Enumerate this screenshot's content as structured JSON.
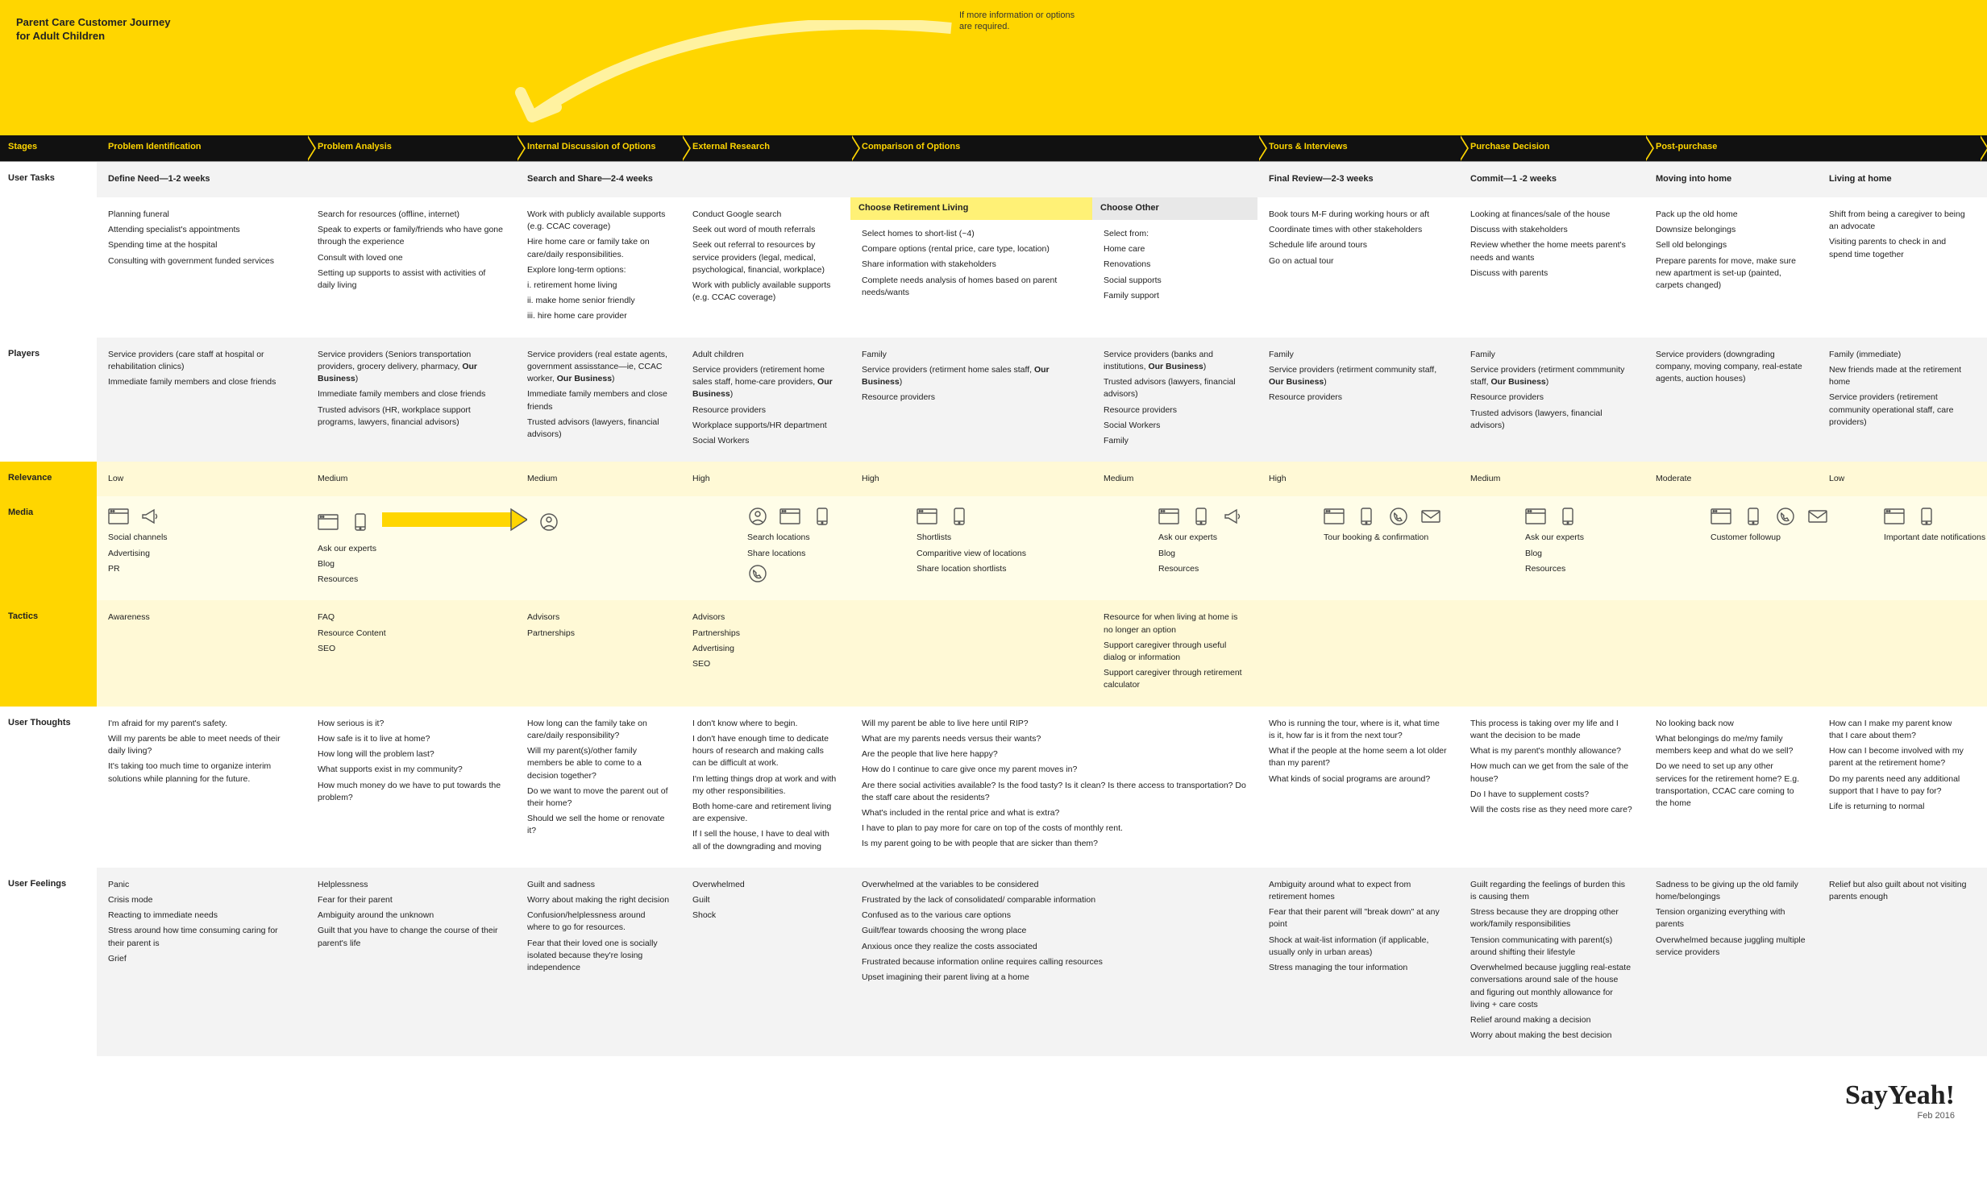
{
  "meta": {
    "title_line1": "Parent Care Customer Journey",
    "title_line2": "for Adult Children",
    "feedback_note_line1": "If more information or options",
    "feedback_note_line2": "are required.",
    "brand": "SayYeah!",
    "date": "Feb 2016",
    "colors": {
      "brand_yellow": "#ffd600",
      "lt_yellow": "#fff9d6",
      "pale_yellow": "#fffde8",
      "dark": "#111111",
      "grey_bg": "#f3f3f3",
      "highlight": "#fff176"
    }
  },
  "row_labels": {
    "stages": "Stages",
    "user_tasks": "User Tasks",
    "players": "Players",
    "relevance": "Relevance",
    "media": "Media",
    "tactics": "Tactics",
    "user_thoughts": "User Thoughts",
    "user_feelings": "User Feelings"
  },
  "stages": [
    {
      "id": "s0",
      "label": "Problem Identification"
    },
    {
      "id": "s1",
      "label": "Problem Analysis"
    },
    {
      "id": "s2",
      "label": "Internal Discussion of Options"
    },
    {
      "id": "s3",
      "label": "External Research"
    },
    {
      "id": "s4",
      "label": "Comparison of Options"
    },
    {
      "id": "s5",
      "label": "Tours & Interviews"
    },
    {
      "id": "s6",
      "label": "Purchase Decision"
    },
    {
      "id": "s7",
      "label": "Post-purchase"
    }
  ],
  "phases": {
    "p0": "Define Need—1-2 weeks",
    "p1": "Search and Share—2-4 weeks",
    "p2": "Final Review—2-3 weeks",
    "p3": "Commit—1 -2 weeks",
    "p4": "Moving into home",
    "p5": "Living at home"
  },
  "subheads": {
    "retirement": "Choose Retirement Living",
    "other": "Choose Other"
  },
  "tasks": {
    "c0": [
      "Planning funeral",
      "Attending specialist's appointments",
      "Spending time at the hospital",
      "Consulting with government funded services"
    ],
    "c1": [
      "Search for resources (offline, internet)",
      "Speak to experts or family/friends who have gone through the experience",
      "Consult with loved one",
      "Setting up supports to assist with activities of daily living"
    ],
    "c2": [
      "Work with publicly available supports (e.g. CCAC coverage)",
      "Hire home care or family take on care/daily responsibilities.",
      "Explore long-term options:",
      "i. retirement home living",
      "ii. make home senior friendly",
      "iii. hire home care provider"
    ],
    "c3": [
      "Conduct Google search",
      "Seek out word of mouth referrals",
      "Seek out referral to resources by service providers (legal, medical, psychological, financial, workplace)",
      "Work with publicly available supports (e.g. CCAC coverage)"
    ],
    "c4": [
      "Select homes to short-list (~4)",
      "Compare options (rental price, care type, location)",
      "Share information with stakeholders",
      "Complete needs analysis of homes based on parent needs/wants"
    ],
    "c5": [
      "Select from:",
      "Home care",
      "Renovations",
      "Social supports",
      "Family support"
    ],
    "c6": [
      "Book tours M-F during working hours or aft",
      "Coordinate times with other stakeholders",
      "Schedule life around tours",
      "Go on actual tour"
    ],
    "c7": [
      "Looking at finances/sale of the house",
      "Discuss with stakeholders",
      "Review whether the home meets parent's needs and wants",
      "Discuss with parents"
    ],
    "c8": [
      "Pack up the old home",
      "Downsize belongings",
      "Sell old belongings",
      "Prepare parents for move, make sure new apartment is set-up (painted, carpets changed)"
    ],
    "c9": [
      "Shift from being a caregiver to being an advocate",
      "Visiting parents to check in and spend time together"
    ]
  },
  "players": {
    "c0": "Service providers (care staff at hospital or rehabilitation clinics)\nImmediate family members and close friends",
    "c1": "Service providers (Seniors transportation providers, grocery delivery, pharmacy, <b>Our Business</b>)\nImmediate family members and close friends\nTrusted advisors (HR, workplace support programs, lawyers, financial advisors)",
    "c2": "Service providers (real estate agents, government assisstance—ie, CCAC worker, <b>Our Business</b>)\nImmediate family members and close friends\nTrusted advisors (lawyers, financial advisors)",
    "c3": "Adult children\nService providers (retirement home sales staff, home-care providers, <b>Our Business</b>)\nResource providers\nWorkplace supports/HR department\nSocial Workers",
    "c4": "Family\nService providers (retirment home sales staff, <b>Our Business</b>)\nResource providers",
    "c5": "Service providers (banks and institutions, <b>Our Business</b>)\nTrusted advisors (lawyers, financial advisors)\nResource providers\nSocial Workers\nFamily",
    "c6": "Family\nService providers (retirment community staff, <b>Our Business</b>)\nResource providers",
    "c7": "Family\nService providers (retirment commmunity staff, <b>Our Business</b>)\nResource providers\nTrusted advisors (lawyers, financial advisors)",
    "c8": "Service providers (downgrading company, moving company, real-estate agents, auction houses)",
    "c9": "Family (immediate)\nNew friends made at the retirement home\nService providers (retirement community operational staff, care providers)"
  },
  "relevance": {
    "c0": "Low",
    "c1": "Medium",
    "c2": "Medium",
    "c3": "High",
    "c4": "High",
    "c5": "Medium",
    "c6": "High",
    "c7": "Medium",
    "c8": "Moderate",
    "c9": "Low"
  },
  "media": {
    "c0": {
      "icons": [
        "browser",
        "megaphone"
      ],
      "items": [
        "Social channels",
        "Advertising",
        "PR"
      ]
    },
    "c1": {
      "icons": [
        "browser",
        "mobile",
        "arrow",
        "avatar"
      ],
      "items": [
        "Ask our experts",
        "Blog",
        "Resources"
      ]
    },
    "c2": {
      "icons": [],
      "items": []
    },
    "c3": {
      "icons": [
        "avatar",
        "browser",
        "mobile"
      ],
      "items": [
        "Search locations",
        "Share locations"
      ],
      "extra_icons": [
        "phone"
      ]
    },
    "c4": {
      "icons": [
        "browser",
        "mobile"
      ],
      "items": [
        "Shortlists",
        "Comparitive view of locations",
        "Share location shortlists"
      ]
    },
    "c5": {
      "icons": [
        "browser",
        "mobile",
        "megaphone"
      ],
      "items": [
        "Ask our experts",
        "Blog",
        "Resources"
      ]
    },
    "c6": {
      "icons": [
        "browser",
        "mobile",
        "phone",
        "envelope"
      ],
      "items": [
        "Tour booking & confirmation"
      ]
    },
    "c7": {
      "icons": [
        "browser",
        "mobile"
      ],
      "items": [
        "Ask our experts",
        "Blog",
        "Resources"
      ]
    },
    "c8": {
      "icons": [
        "browser",
        "mobile",
        "phone",
        "envelope"
      ],
      "items": [
        "Customer followup"
      ]
    },
    "c9": {
      "icons": [
        "browser",
        "mobile"
      ],
      "items": [
        "Important date notifications"
      ]
    }
  },
  "tactics": {
    "c0": [
      "Awareness"
    ],
    "c1": [
      "FAQ",
      "Resource Content",
      "SEO"
    ],
    "c2": [
      "Advisors",
      "Partnerships"
    ],
    "c3": [
      "Advisors",
      "Partnerships",
      "Advertising",
      "SEO"
    ],
    "c4": [],
    "c5": [
      "Resource for when living at home is no longer an option",
      "Support caregiver through useful dialog or information",
      "Support caregiver through retirement calculator"
    ],
    "c6": [],
    "c7": [],
    "c8": [],
    "c9": []
  },
  "thoughts": {
    "c0": [
      "I'm afraid for my parent's safety.",
      "Will my parents be able to meet needs of their daily living?",
      "It's taking too much time to organize interim solutions while planning for the future."
    ],
    "c1": [
      "How serious is it?",
      "How safe is it to live at home?",
      "How long will the problem last?",
      "What supports exist in my community?",
      "How much money do we have to put towards the problem?"
    ],
    "c2": [
      "How long can the family take on care/daily responsibility?",
      "Will my parent(s)/other family members be able to come to a decision together?",
      "Do we want to move the parent out of their home?",
      "Should we sell the home or renovate it?"
    ],
    "c3": [
      "I don't know where to begin.",
      "I don't have enough time to dedicate hours of research and making calls can be difficult at work.",
      "I'm letting things drop at work and with my other responsibilities.",
      "Both home-care and retirement living are expensive.",
      "If I sell the house, I have to deal with all of the downgrading and moving"
    ],
    "c45": [
      "Will my parent be able to live here until RIP?",
      "What are my parents needs versus their wants?",
      "Are the people that live here happy?",
      "How do I continue to care give once my parent moves in?",
      "Are there social activities available? Is the food tasty? Is it clean? Is there access to transportation? Do the staff care about the residents?",
      "What's included in the rental price and what is extra?",
      "I have to plan to pay more for care on top of the costs of monthly rent.",
      "Is my parent going to be with people that are sicker than them?"
    ],
    "c6": [
      "Who is running the tour, where is it, what time is it, how far is it from the next tour?",
      "What if the people at the home seem a lot older than my parent?",
      "What kinds of social programs are around?"
    ],
    "c7": [
      "This process is taking over my life and I want the decision to be made",
      "What is my parent's monthly allowance?",
      "How much can we get from the sale of the house?",
      "Do I have to supplement costs?",
      "Will the costs rise as they need more care?"
    ],
    "c8": [
      "No looking back now",
      "What belongings do me/my family members keep and what do we sell?",
      "Do we need to set up any other services for the retirement home? E.g. transportation, CCAC care coming to the home"
    ],
    "c9": [
      "How can I make my parent know that I care about them?",
      "How can I become involved with my parent at the retirement home?",
      "Do my parents need any additional support that I have to pay for?",
      "Life is returning to normal"
    ]
  },
  "feelings": {
    "c0": [
      "Panic",
      "Crisis mode",
      "Reacting to immediate needs",
      "Stress around how time consuming caring for their parent is",
      "Grief"
    ],
    "c1": [
      "Helplessness",
      "Fear for their parent",
      "Ambiguity around the unknown",
      "Guilt that you have to change the course of their parent's life"
    ],
    "c2": [
      "Guilt and sadness",
      "Worry about making the right decision",
      "Confusion/helplessness around where to go for resources.",
      "Fear that their loved one is socially isolated because they're losing independence"
    ],
    "c3": [
      "Overwhelmed",
      "Guilt",
      "Shock"
    ],
    "c45": [
      "Overwhelmed at the variables to be considered",
      "Frustrated by the lack of consolidated/ comparable information",
      "Confused as to the various care options",
      "Guilt/fear towards choosing the wrong place",
      "Anxious once they realize the costs associated",
      "Frustrated because information online requires calling resources",
      "Upset imagining their parent living at a home"
    ],
    "c6": [
      "Ambiguity around what to expect from retirement homes",
      "Fear that their parent will \"break down\" at any point",
      "Shock at wait-list information (if applicable, usually only in urban areas)",
      "Stress managing the tour information"
    ],
    "c7": [
      "Guilt regarding the feelings of burden this is causing them",
      "Stress because they are dropping other work/family responsibilities",
      "Tension communicating with parent(s) around shifting their lifestyle",
      "Overwhelmed because juggling real-estate conversations around sale of the house and figuring out monthly allowance for living + care costs",
      "Relief around making a decision",
      "Worry about making the best decision"
    ],
    "c8": [
      "Sadness to be giving up the old family home/belongings",
      "Tension organizing everything with parents",
      "Overwhelmed because juggling multiple service providers"
    ],
    "c9": [
      "Relief but also guilt about not visiting parents enough"
    ]
  }
}
